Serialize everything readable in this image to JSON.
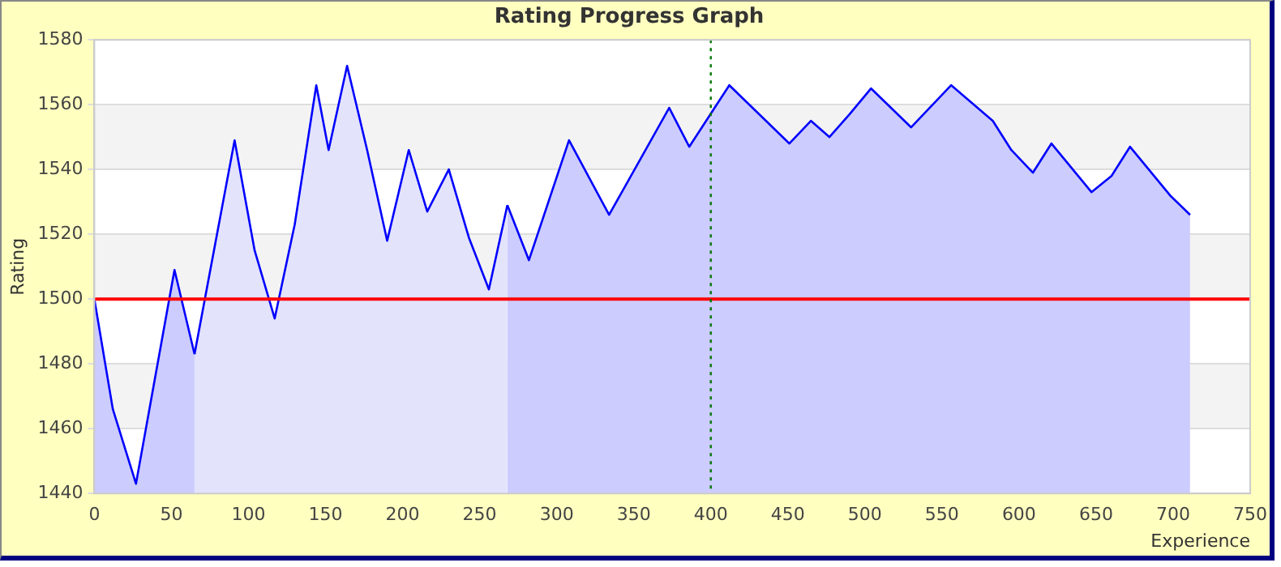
{
  "chart_data": {
    "type": "area",
    "title": "Rating Progress Graph",
    "xlabel": "Experience",
    "ylabel": "Rating",
    "xlim": [
      0,
      750
    ],
    "xticks": [
      0,
      50,
      100,
      150,
      200,
      250,
      300,
      350,
      400,
      450,
      500,
      550,
      600,
      650,
      700,
      750
    ],
    "ylim": [
      1440,
      1580
    ],
    "yticks": [
      1440,
      1460,
      1480,
      1500,
      1520,
      1540,
      1560,
      1580
    ],
    "grid": "y",
    "legend": false,
    "marker": "none",
    "line_style": "solid",
    "series": [
      {
        "color": "#ccccff",
        "x": [
          0,
          12,
          27,
          52,
          65
        ],
        "values": [
          1500,
          1466,
          1443,
          1509,
          1483
        ]
      },
      {
        "color": "#e3e3fc",
        "x": [
          65,
          91,
          104,
          117,
          130,
          144,
          152,
          164,
          177,
          190,
          204,
          216,
          230,
          243,
          256,
          268
        ],
        "values": [
          1483,
          1549,
          1515,
          1494,
          1523,
          1566,
          1546,
          1572,
          1546,
          1518,
          1546,
          1527,
          1540,
          1519,
          1503,
          1529
        ]
      },
      {
        "color": "#ccccff",
        "x": [
          268,
          282,
          308,
          334,
          373,
          386,
          412,
          451,
          465,
          477,
          490,
          504,
          530,
          556,
          583,
          595,
          609,
          621,
          647,
          660,
          672,
          698,
          711
        ],
        "values": [
          1529,
          1512,
          1549,
          1526,
          1559,
          1547,
          1566,
          1548,
          1555,
          1550,
          1557,
          1565,
          1553,
          1566,
          1555,
          1546,
          1539,
          1548,
          1533,
          1538,
          1547,
          1532,
          1526
        ]
      }
    ],
    "ref_lines": [
      {
        "axis": "y",
        "value": 1500,
        "color": "#ff0000",
        "line_style": "solid"
      },
      {
        "axis": "x",
        "value": 400,
        "color": "#007700",
        "line_style": "dotted"
      }
    ],
    "bands": [
      {
        "axis": "y",
        "from": 1540,
        "to": 1560,
        "color": "#f3f3f3"
      },
      {
        "axis": "y",
        "from": 1500,
        "to": 1520,
        "color": "#f3f3f3"
      },
      {
        "axis": "y",
        "from": 1460,
        "to": 1480,
        "color": "#f3f3f3"
      }
    ]
  }
}
